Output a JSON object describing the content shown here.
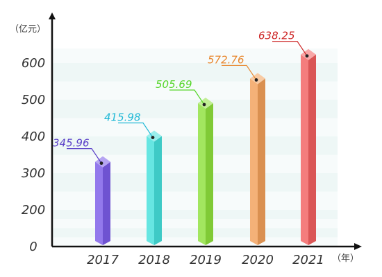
{
  "chart_data": {
    "type": "bar",
    "title": "",
    "categories": [
      "2017",
      "2018",
      "2019",
      "2020",
      "2021"
    ],
    "values": [
      345.96,
      415.98,
      505.69,
      572.76,
      638.25
    ],
    "value_labels": [
      "345.96",
      "415.98",
      "505.69",
      "572.76",
      "638.25"
    ],
    "yticks": [
      "0",
      "200",
      "300",
      "400",
      "500",
      "600"
    ],
    "ylim": [
      0,
      700
    ],
    "ylabel": "（亿元）",
    "xlabel": "（年）",
    "grid": "horizontal bands",
    "legend": "none",
    "colors": [
      "#7b5ce8",
      "#45e0dc",
      "#8ee03c",
      "#f2a05a",
      "#f26060"
    ],
    "label_colors": [
      "#5a3fc8",
      "#1fb8d6",
      "#55d62a",
      "#e8872e",
      "#cc2222"
    ]
  }
}
